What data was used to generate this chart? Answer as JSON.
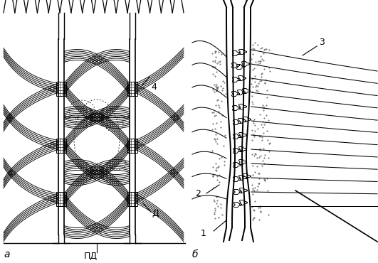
{
  "fig_width": 5.31,
  "fig_height": 3.7,
  "dpi": 100,
  "bg_color": "#ffffff",
  "line_color": "#000000",
  "label_a": "a",
  "label_b": "б",
  "label_PD": "ПД",
  "label_D": "Д",
  "label_1": "1",
  "label_2": "2",
  "label_3": "3",
  "label_4": "4"
}
